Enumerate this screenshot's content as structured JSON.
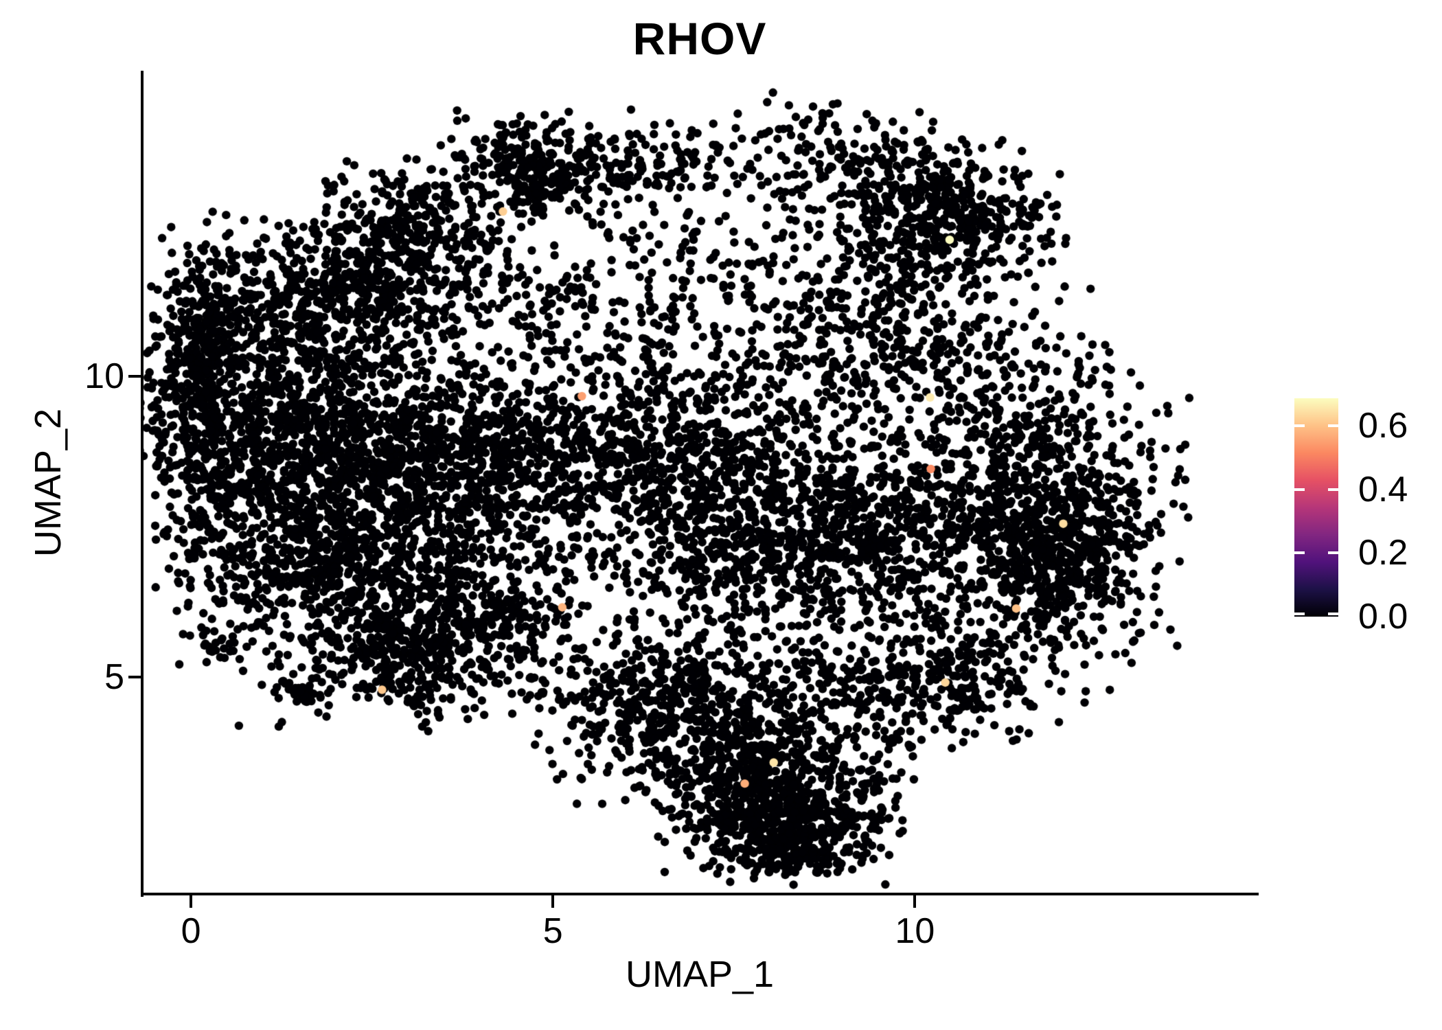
{
  "chart_data": {
    "type": "scatter",
    "title": "RHOV",
    "xlabel": "UMAP_1",
    "ylabel": "UMAP_2",
    "x_ticks": [
      {
        "label": "0",
        "value": 0
      },
      {
        "label": "5",
        "value": 5
      },
      {
        "label": "10",
        "value": 10
      }
    ],
    "y_ticks": [
      {
        "label": "5",
        "value": 5
      },
      {
        "label": "10",
        "value": 10
      }
    ],
    "x_domain": [
      -0.674,
      14.73
    ],
    "y_domain": [
      1.394,
      15.058
    ],
    "grid": false,
    "legend_position": "right",
    "point_radius_px": 6.2,
    "base_point_color": "#000004",
    "colorbar": {
      "min": 0.0,
      "max": 0.687,
      "ticks": [
        {
          "label": "0.6",
          "value": 0.6
        },
        {
          "label": "0.4",
          "value": 0.4
        },
        {
          "label": "0.2",
          "value": 0.2
        },
        {
          "label": "0.0",
          "value": 0.0
        }
      ],
      "colormap": "magma",
      "stops": [
        "#000004",
        "#1D1147",
        "#51127C",
        "#822681",
        "#B63679",
        "#E65164",
        "#FB8861",
        "#FEC287",
        "#FCFDBF"
      ]
    },
    "seed": 20240607,
    "n_points_approx": 11300,
    "clusters": [
      {
        "x": 0.12,
        "y": 10.6,
        "sx": 0.3,
        "sy": 0.95,
        "n": 260
      },
      {
        "x": 0.25,
        "y": 8.9,
        "sx": 0.5,
        "sy": 1.05,
        "n": 280
      },
      {
        "x": 1.25,
        "y": 9.3,
        "sx": 0.85,
        "sy": 1.3,
        "n": 700
      },
      {
        "x": 2.85,
        "y": 12.65,
        "sx": 0.55,
        "sy": 0.45,
        "n": 220
      },
      {
        "x": 2.3,
        "y": 11.5,
        "sx": 1.15,
        "sy": 0.6,
        "n": 560,
        "rot": 0.15
      },
      {
        "x": 4.75,
        "y": 13.45,
        "sx": 0.6,
        "sy": 0.42,
        "n": 250
      },
      {
        "x": 6.2,
        "y": 13.6,
        "sx": 0.8,
        "sy": 0.38,
        "n": 150
      },
      {
        "x": 9.2,
        "y": 13.75,
        "sx": 0.75,
        "sy": 0.4,
        "n": 140,
        "rot": -0.35
      },
      {
        "x": 3.1,
        "y": 8.4,
        "sx": 1.25,
        "sy": 1.45,
        "n": 1100
      },
      {
        "x": 4.2,
        "y": 8.7,
        "sx": 2.3,
        "sy": 0.55,
        "n": 560,
        "rot": 0.05
      },
      {
        "x": 6.4,
        "y": 11.3,
        "sx": 1.5,
        "sy": 1.05,
        "n": 300
      },
      {
        "x": 8.4,
        "y": 12.7,
        "sx": 0.8,
        "sy": 0.75,
        "n": 60
      },
      {
        "x": 7.0,
        "y": 8.3,
        "sx": 1.5,
        "sy": 1.1,
        "n": 950
      },
      {
        "x": 10.45,
        "y": 12.65,
        "sx": 0.7,
        "sy": 0.55,
        "n": 460
      },
      {
        "x": 9.8,
        "y": 10.7,
        "sx": 1.15,
        "sy": 0.85,
        "n": 420
      },
      {
        "x": 11.6,
        "y": 7.9,
        "sx": 0.95,
        "sy": 1.25,
        "n": 750
      },
      {
        "x": 11.95,
        "y": 7.1,
        "sx": 0.6,
        "sy": 0.75,
        "n": 420
      },
      {
        "x": 8.9,
        "y": 7.2,
        "sx": 1.25,
        "sy": 0.8,
        "n": 650
      },
      {
        "x": 2.0,
        "y": 6.7,
        "sx": 1.1,
        "sy": 0.8,
        "n": 560
      },
      {
        "x": 2.95,
        "y": 5.45,
        "sx": 0.75,
        "sy": 0.5,
        "n": 260
      },
      {
        "x": 4.1,
        "y": 5.7,
        "sx": 0.7,
        "sy": 0.45,
        "n": 180
      },
      {
        "x": 0.38,
        "y": 5.5,
        "sx": 0.14,
        "sy": 0.1,
        "n": 16
      },
      {
        "x": 1.5,
        "y": 4.8,
        "sx": 0.16,
        "sy": 0.1,
        "n": 26
      },
      {
        "x": 2.7,
        "y": 4.9,
        "sx": 0.9,
        "sy": 0.45,
        "n": 60
      },
      {
        "x": 7.3,
        "y": 5.2,
        "sx": 1.2,
        "sy": 0.55,
        "n": 190
      },
      {
        "x": 6.0,
        "y": 4.6,
        "sx": 0.5,
        "sy": 0.4,
        "n": 90
      },
      {
        "x": 6.8,
        "y": 4.3,
        "sx": 1.0,
        "sy": 0.6,
        "n": 330
      },
      {
        "x": 7.9,
        "y": 3.6,
        "sx": 0.9,
        "sy": 0.55,
        "n": 380
      },
      {
        "x": 8.2,
        "y": 2.7,
        "sx": 0.75,
        "sy": 0.5,
        "n": 560
      },
      {
        "x": 8.3,
        "y": 2.1,
        "sx": 0.45,
        "sy": 0.22,
        "n": 100
      },
      {
        "x": 10.0,
        "y": 4.7,
        "sx": 0.8,
        "sy": 0.5,
        "n": 170
      },
      {
        "x": 10.8,
        "y": 5.1,
        "sx": 0.9,
        "sy": 0.5,
        "n": 160
      }
    ],
    "highlight_points": [
      {
        "x": 4.31,
        "y": 12.74,
        "value": 0.62
      },
      {
        "x": 5.4,
        "y": 9.67,
        "value": 0.55
      },
      {
        "x": 10.21,
        "y": 9.65,
        "value": 0.66
      },
      {
        "x": 12.05,
        "y": 7.55,
        "value": 0.64
      },
      {
        "x": 11.4,
        "y": 6.14,
        "value": 0.6
      },
      {
        "x": 10.42,
        "y": 4.91,
        "value": 0.63
      },
      {
        "x": 5.13,
        "y": 6.16,
        "value": 0.58
      },
      {
        "x": 2.64,
        "y": 4.79,
        "value": 0.61
      },
      {
        "x": 8.05,
        "y": 3.58,
        "value": 0.65
      },
      {
        "x": 7.65,
        "y": 3.23,
        "value": 0.57
      },
      {
        "x": 10.48,
        "y": 12.27,
        "value": 0.69
      },
      {
        "x": 10.22,
        "y": 8.46,
        "value": 0.52
      }
    ]
  }
}
